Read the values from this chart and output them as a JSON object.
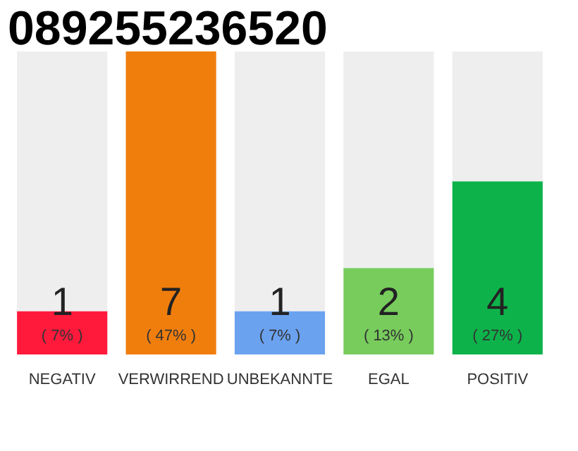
{
  "chart_data": {
    "type": "bar",
    "title": "089255236520",
    "categories": [
      "NEGATIV",
      "VERWIRREND",
      "UNBEKANNTE",
      "EGAL",
      "POSITIV"
    ],
    "stacked": true,
    "ylim": [
      0,
      7
    ],
    "tick_labels": "x",
    "grid": false,
    "series": [
      {
        "colors": [
          "#ff1a3c",
          "#f07e0d",
          "#6aa2f0",
          "#77cc5c",
          "#0db34a"
        ],
        "values": [
          1,
          7,
          1,
          2,
          4
        ],
        "value_labels": [
          "1",
          "7",
          "1",
          "2",
          "4"
        ]
      },
      {
        "color": "#eeeeee",
        "values": [
          6,
          0,
          6,
          5,
          3
        ]
      }
    ],
    "annotations": [
      {
        "text": "( 7% )",
        "x": "NEGATIV",
        "y": 0
      },
      {
        "text": "( 47% )",
        "x": "VERWIRREND",
        "y": 0
      },
      {
        "text": "( 7% )",
        "x": "UNBEKANNTE",
        "y": 0
      },
      {
        "text": "( 13% )",
        "x": "EGAL",
        "y": 0
      },
      {
        "text": "( 27% )",
        "x": "POSITIV",
        "y": 0
      }
    ]
  }
}
